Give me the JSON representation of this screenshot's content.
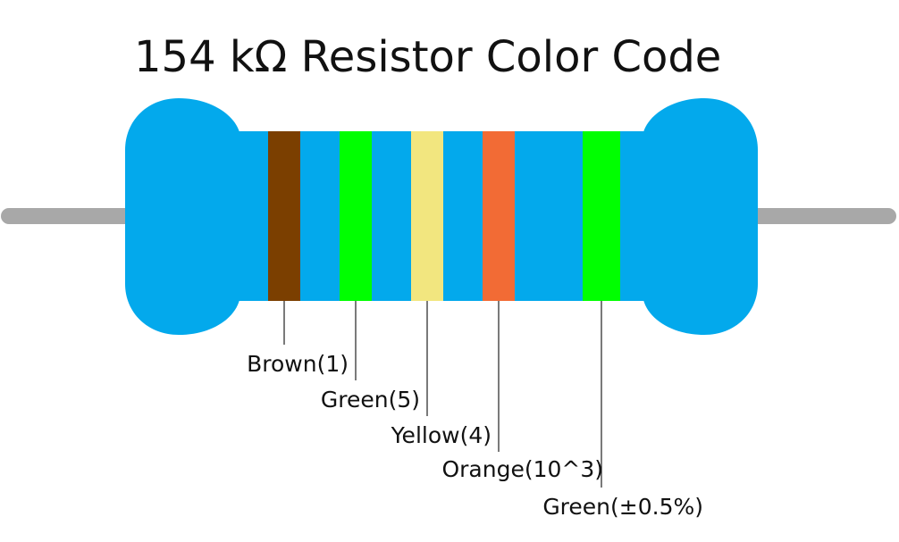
{
  "title": "154 kΩ Resistor Color Code",
  "bands": [
    {
      "label": "Brown(1)",
      "color": "#7b3f00"
    },
    {
      "label": "Green(5)",
      "color": "#00ff00"
    },
    {
      "label": "Yellow(4)",
      "color": "#f2e67f"
    },
    {
      "label": "Orange(10^3)",
      "color": "#f26b35"
    },
    {
      "label": "Green(±0.5%)",
      "color": "#00ff00"
    }
  ]
}
